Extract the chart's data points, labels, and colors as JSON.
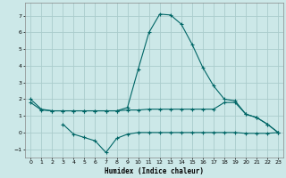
{
  "xlabel": "Humidex (Indice chaleur)",
  "bg_color": "#cce8e8",
  "grid_color": "#aacccc",
  "line_color": "#006666",
  "x_ticks": [
    0,
    1,
    2,
    3,
    4,
    5,
    6,
    7,
    8,
    9,
    10,
    11,
    12,
    13,
    14,
    15,
    16,
    17,
    18,
    19,
    20,
    21,
    22,
    23
  ],
  "ylim": [
    -1.5,
    7.8
  ],
  "xlim": [
    -0.5,
    23.5
  ],
  "yticks": [
    -1,
    0,
    1,
    2,
    3,
    4,
    5,
    6,
    7
  ],
  "series1_x": [
    0,
    1,
    2,
    3,
    4,
    5,
    6,
    7,
    8,
    9,
    10,
    11,
    12,
    13,
    14,
    15,
    16,
    17,
    18,
    19,
    20,
    21,
    22,
    23
  ],
  "series1_y": [
    2.0,
    1.4,
    1.3,
    1.3,
    1.3,
    1.3,
    1.3,
    1.3,
    1.3,
    1.5,
    3.8,
    6.0,
    7.1,
    7.05,
    6.5,
    5.3,
    3.9,
    2.8,
    2.0,
    1.9,
    1.1,
    0.9,
    0.5,
    0.0
  ],
  "series2_x": [
    0,
    1,
    2,
    3,
    4,
    5,
    6,
    7,
    8,
    9,
    10,
    11,
    12,
    13,
    14,
    15,
    16,
    17,
    18,
    19,
    20,
    21,
    22,
    23
  ],
  "series2_y": [
    1.8,
    1.35,
    1.3,
    1.3,
    1.3,
    1.3,
    1.3,
    1.3,
    1.3,
    1.35,
    1.35,
    1.4,
    1.4,
    1.4,
    1.4,
    1.4,
    1.4,
    1.4,
    1.8,
    1.8,
    1.1,
    0.9,
    0.5,
    0.0
  ],
  "series3_x": [
    3,
    4,
    5,
    6,
    7,
    8,
    9,
    10,
    11,
    12,
    13,
    14,
    15,
    16,
    17,
    18,
    19,
    20,
    21,
    22,
    23
  ],
  "series3_y": [
    0.5,
    -0.1,
    -0.3,
    -0.5,
    -1.2,
    -0.35,
    -0.1,
    0.0,
    0.0,
    0.0,
    0.0,
    0.0,
    0.0,
    0.0,
    0.0,
    0.0,
    0.0,
    -0.05,
    -0.05,
    -0.05,
    0.0
  ]
}
